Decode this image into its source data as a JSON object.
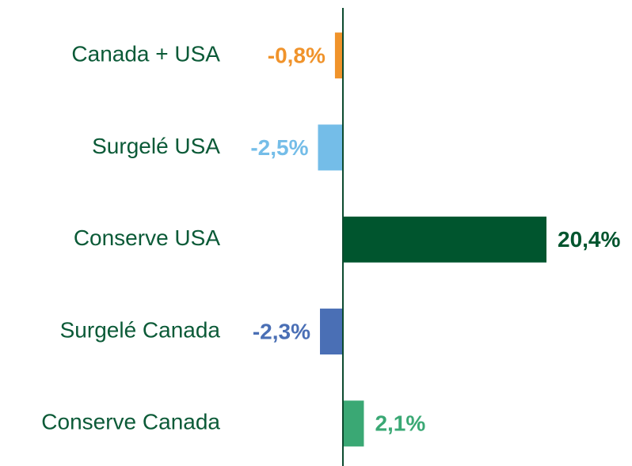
{
  "chart_data": {
    "type": "hbar",
    "categories": [
      "Canada + USA",
      "Surgelé USA",
      "Conserve USA",
      "Surgelé Canada",
      "Conserve Canada"
    ],
    "values": [
      -0.8,
      -2.5,
      20.4,
      -2.3,
      2.1
    ],
    "value_labels": [
      "-0,8%",
      "-2,5%",
      "20,4%",
      "-2,3%",
      "2,1%"
    ],
    "colors": [
      "#f0932b",
      "#74bde8",
      "#00552e",
      "#4a6fb5",
      "#3aa874"
    ],
    "xlim": [
      -5,
      20.4
    ]
  }
}
